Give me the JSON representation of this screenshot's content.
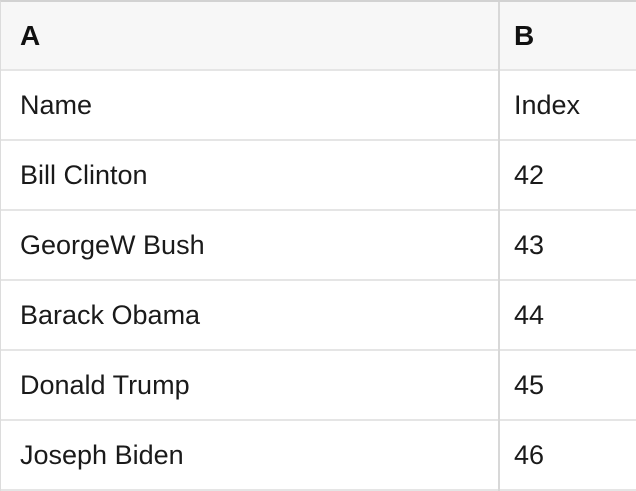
{
  "table": {
    "column_headers": [
      "A",
      "B"
    ],
    "rows": [
      {
        "a": "Name",
        "b": "Index"
      },
      {
        "a": "Bill Clinton",
        "b": "42"
      },
      {
        "a": "GeorgeW Bush",
        "b": "43"
      },
      {
        "a": "Barack Obama",
        "b": "44"
      },
      {
        "a": "Donald Trump",
        "b": "45"
      },
      {
        "a": "Joseph Biden",
        "b": "46"
      }
    ],
    "colors": {
      "header_background": "#f7f7f7",
      "body_background": "#ffffff",
      "row_border": "#e5e5e5",
      "column_divider": "#d8d8d8",
      "top_border": "#d2d2d2",
      "text": "#1a1a1a"
    }
  }
}
